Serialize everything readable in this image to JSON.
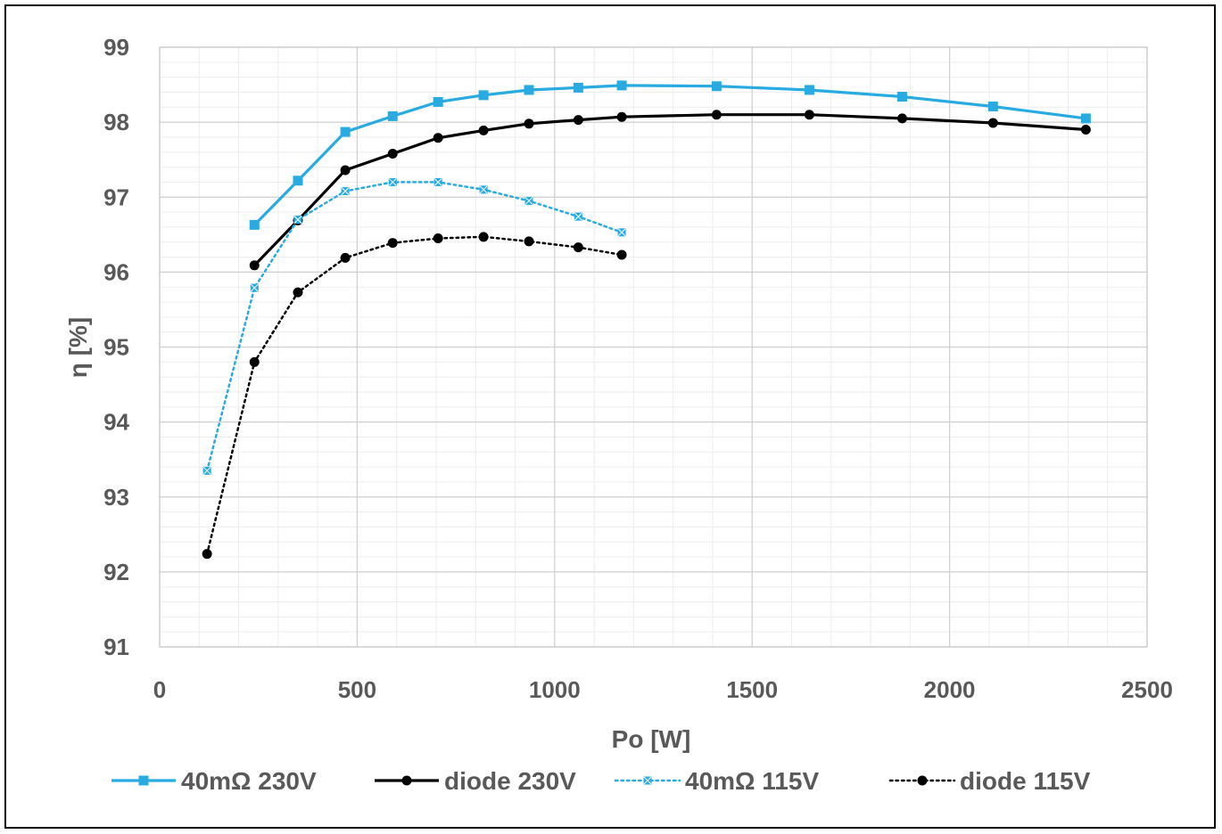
{
  "chart_data": {
    "type": "line",
    "title": "",
    "xlabel": "Po [W]",
    "ylabel": "η [%]",
    "xlim": [
      0,
      2500
    ],
    "ylim": [
      91,
      99
    ],
    "x_ticks": [
      0,
      500,
      1000,
      1500,
      2000,
      2500
    ],
    "y_ticks": [
      91,
      92,
      93,
      94,
      95,
      96,
      97,
      98,
      99
    ],
    "x_minor_step": 100,
    "y_minor_step": 0.2,
    "grid": true,
    "legend_position": "bottom",
    "series": [
      {
        "name": "40mΩ 230V",
        "color": "#29ABE2",
        "style": "solid",
        "marker": "square",
        "points": [
          [
            240,
            96.63
          ],
          [
            350,
            97.22
          ],
          [
            470,
            97.87
          ],
          [
            590,
            98.08
          ],
          [
            705,
            98.27
          ],
          [
            820,
            98.36
          ],
          [
            935,
            98.43
          ],
          [
            1060,
            98.46
          ],
          [
            1170,
            98.49
          ],
          [
            1410,
            98.48
          ],
          [
            1645,
            98.43
          ],
          [
            1880,
            98.34
          ],
          [
            2110,
            98.21
          ],
          [
            2345,
            98.05
          ]
        ]
      },
      {
        "name": "diode 230V",
        "color": "#000000",
        "style": "solid",
        "marker": "circle",
        "points": [
          [
            240,
            96.09
          ],
          [
            350,
            96.69
          ],
          [
            470,
            97.36
          ],
          [
            590,
            97.58
          ],
          [
            705,
            97.79
          ],
          [
            820,
            97.89
          ],
          [
            935,
            97.98
          ],
          [
            1060,
            98.03
          ],
          [
            1170,
            98.07
          ],
          [
            1410,
            98.1
          ],
          [
            1645,
            98.1
          ],
          [
            1880,
            98.05
          ],
          [
            2110,
            97.99
          ],
          [
            2345,
            97.9
          ]
        ]
      },
      {
        "name": "40mΩ 115V",
        "color": "#29ABE2",
        "style": "dotted",
        "marker": "x-square",
        "points": [
          [
            120,
            93.35
          ],
          [
            240,
            95.79
          ],
          [
            350,
            96.7
          ],
          [
            470,
            97.08
          ],
          [
            590,
            97.2
          ],
          [
            705,
            97.2
          ],
          [
            820,
            97.1
          ],
          [
            935,
            96.95
          ],
          [
            1060,
            96.74
          ],
          [
            1170,
            96.53
          ]
        ]
      },
      {
        "name": "diode 115V",
        "color": "#000000",
        "style": "dotted",
        "marker": "circle",
        "points": [
          [
            120,
            92.24
          ],
          [
            240,
            94.8
          ],
          [
            350,
            95.73
          ],
          [
            470,
            96.19
          ],
          [
            590,
            96.39
          ],
          [
            705,
            96.45
          ],
          [
            820,
            96.47
          ],
          [
            935,
            96.41
          ],
          [
            1060,
            96.33
          ],
          [
            1170,
            96.23
          ]
        ]
      }
    ]
  }
}
